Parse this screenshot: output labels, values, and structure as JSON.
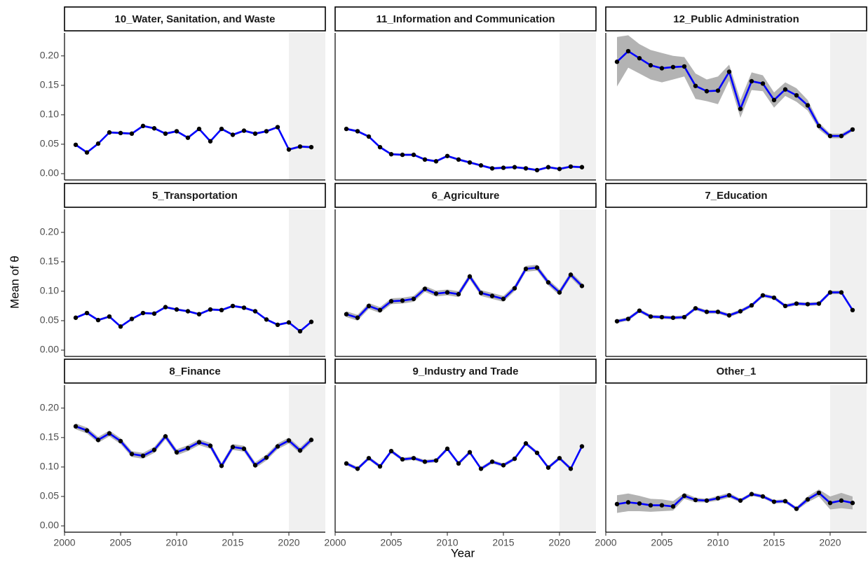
{
  "chart_data": {
    "type": "line",
    "xlabel": "Year",
    "ylabel": "Mean of θ",
    "xlim": [
      2000,
      2023.25
    ],
    "xticks": [
      2000,
      2005,
      2010,
      2015,
      2020
    ],
    "ylim": [
      -0.0107,
      0.239
    ],
    "yticks": [
      {
        "value": 0,
        "label": "0.00"
      },
      0.05,
      {
        "value": 0.1,
        "label": "0.10"
      },
      0.15,
      {
        "value": 0.2,
        "label": "0.20"
      }
    ],
    "shade_from": 2020,
    "shade_color": "#f0f0f0",
    "color": "#0000ff",
    "band_color": "#b3b3b3",
    "point_color": "#000000",
    "x": [
      2001,
      2002,
      2003,
      2004,
      2005,
      2006,
      2007,
      2008,
      2009,
      2010,
      2011,
      2012,
      2013,
      2014,
      2015,
      2016,
      2017,
      2018,
      2019,
      2020,
      2021,
      2022
    ],
    "facets": [
      {
        "title": "10_Water, Sanitation, and Waste",
        "values": [
          0.049,
          0.036,
          0.051,
          0.07,
          0.069,
          0.068,
          0.081,
          0.077,
          0.068,
          0.072,
          0.061,
          0.076,
          0.055,
          0.076,
          0.066,
          0.073,
          0.068,
          0.072,
          0.079,
          0.041,
          0.046,
          0.045
        ],
        "lower": [
          0.047,
          0.034,
          0.049,
          0.068,
          0.067,
          0.066,
          0.079,
          0.075,
          0.066,
          0.07,
          0.059,
          0.074,
          0.053,
          0.074,
          0.064,
          0.071,
          0.066,
          0.07,
          0.077,
          0.039,
          0.044,
          0.043
        ],
        "upper": [
          0.051,
          0.038,
          0.053,
          0.072,
          0.071,
          0.07,
          0.083,
          0.079,
          0.07,
          0.074,
          0.063,
          0.078,
          0.057,
          0.078,
          0.068,
          0.075,
          0.07,
          0.074,
          0.081,
          0.043,
          0.048,
          0.047
        ]
      },
      {
        "title": "11_Information and Communication",
        "values": [
          0.076,
          0.072,
          0.063,
          0.045,
          0.033,
          0.032,
          0.032,
          0.024,
          0.021,
          0.03,
          0.024,
          0.019,
          0.014,
          0.009,
          0.01,
          0.011,
          0.009,
          0.006,
          0.011,
          0.008,
          0.012,
          0.011
        ],
        "lower": [
          0.074,
          0.07,
          0.061,
          0.043,
          0.031,
          0.03,
          0.03,
          0.022,
          0.019,
          0.028,
          0.022,
          0.017,
          0.012,
          0.007,
          0.008,
          0.009,
          0.007,
          0.004,
          0.009,
          0.006,
          0.01,
          0.009
        ],
        "upper": [
          0.078,
          0.074,
          0.065,
          0.047,
          0.035,
          0.034,
          0.034,
          0.026,
          0.023,
          0.032,
          0.026,
          0.021,
          0.016,
          0.011,
          0.012,
          0.013,
          0.011,
          0.008,
          0.013,
          0.01,
          0.014,
          0.013
        ]
      },
      {
        "title": "12_Public Administration",
        "values": [
          0.19,
          0.208,
          0.196,
          0.184,
          0.179,
          0.181,
          0.182,
          0.149,
          0.14,
          0.141,
          0.173,
          0.11,
          0.157,
          0.153,
          0.125,
          0.143,
          0.133,
          0.116,
          0.081,
          0.064,
          0.064,
          0.075
        ],
        "lower": [
          0.148,
          0.18,
          0.17,
          0.16,
          0.155,
          0.16,
          0.165,
          0.127,
          0.123,
          0.118,
          0.158,
          0.095,
          0.142,
          0.14,
          0.112,
          0.132,
          0.122,
          0.107,
          0.075,
          0.06,
          0.06,
          0.072
        ],
        "upper": [
          0.232,
          0.235,
          0.22,
          0.21,
          0.205,
          0.2,
          0.198,
          0.17,
          0.16,
          0.165,
          0.185,
          0.125,
          0.172,
          0.167,
          0.138,
          0.155,
          0.145,
          0.125,
          0.087,
          0.068,
          0.068,
          0.078
        ]
      },
      {
        "title": "5_Transportation",
        "values": [
          0.055,
          0.063,
          0.051,
          0.057,
          0.04,
          0.053,
          0.063,
          0.062,
          0.073,
          0.069,
          0.066,
          0.061,
          0.069,
          0.068,
          0.075,
          0.072,
          0.066,
          0.052,
          0.043,
          0.047,
          0.032,
          0.048
        ],
        "lower": [
          0.053,
          0.061,
          0.049,
          0.055,
          0.038,
          0.051,
          0.061,
          0.06,
          0.071,
          0.067,
          0.064,
          0.059,
          0.067,
          0.066,
          0.073,
          0.07,
          0.064,
          0.05,
          0.041,
          0.045,
          0.03,
          0.046
        ],
        "upper": [
          0.057,
          0.065,
          0.053,
          0.059,
          0.042,
          0.055,
          0.065,
          0.064,
          0.075,
          0.071,
          0.068,
          0.063,
          0.071,
          0.07,
          0.077,
          0.074,
          0.068,
          0.054,
          0.045,
          0.049,
          0.034,
          0.05
        ]
      },
      {
        "title": "6_Agriculture",
        "values": [
          0.061,
          0.055,
          0.075,
          0.068,
          0.083,
          0.084,
          0.087,
          0.104,
          0.096,
          0.098,
          0.095,
          0.125,
          0.097,
          0.092,
          0.087,
          0.105,
          0.138,
          0.14,
          0.115,
          0.098,
          0.128,
          0.109
        ],
        "lower": [
          0.056,
          0.05,
          0.07,
          0.063,
          0.078,
          0.079,
          0.082,
          0.099,
          0.091,
          0.093,
          0.09,
          0.12,
          0.092,
          0.087,
          0.082,
          0.1,
          0.133,
          0.135,
          0.11,
          0.093,
          0.123,
          0.104
        ],
        "upper": [
          0.066,
          0.06,
          0.08,
          0.073,
          0.088,
          0.089,
          0.092,
          0.109,
          0.101,
          0.103,
          0.1,
          0.13,
          0.102,
          0.097,
          0.092,
          0.11,
          0.143,
          0.145,
          0.12,
          0.103,
          0.133,
          0.114
        ]
      },
      {
        "title": "7_Education",
        "values": [
          0.049,
          0.053,
          0.067,
          0.057,
          0.056,
          0.055,
          0.056,
          0.071,
          0.065,
          0.065,
          0.059,
          0.066,
          0.076,
          0.093,
          0.089,
          0.075,
          0.079,
          0.078,
          0.079,
          0.098,
          0.098,
          0.068
        ],
        "lower": [
          0.046,
          0.05,
          0.064,
          0.054,
          0.053,
          0.052,
          0.053,
          0.068,
          0.062,
          0.062,
          0.056,
          0.063,
          0.073,
          0.09,
          0.086,
          0.072,
          0.076,
          0.075,
          0.076,
          0.095,
          0.095,
          0.065
        ],
        "upper": [
          0.052,
          0.056,
          0.07,
          0.06,
          0.059,
          0.058,
          0.059,
          0.074,
          0.068,
          0.068,
          0.062,
          0.069,
          0.079,
          0.096,
          0.092,
          0.078,
          0.082,
          0.081,
          0.082,
          0.101,
          0.101,
          0.071
        ]
      },
      {
        "title": "8_Finance",
        "values": [
          0.169,
          0.162,
          0.146,
          0.157,
          0.144,
          0.122,
          0.119,
          0.129,
          0.152,
          0.125,
          0.132,
          0.142,
          0.136,
          0.102,
          0.134,
          0.131,
          0.103,
          0.116,
          0.135,
          0.145,
          0.128,
          0.146
        ],
        "lower": [
          0.164,
          0.157,
          0.141,
          0.152,
          0.139,
          0.117,
          0.114,
          0.124,
          0.147,
          0.12,
          0.127,
          0.137,
          0.131,
          0.097,
          0.129,
          0.126,
          0.098,
          0.111,
          0.13,
          0.14,
          0.123,
          0.141
        ],
        "upper": [
          0.174,
          0.167,
          0.151,
          0.162,
          0.149,
          0.127,
          0.124,
          0.134,
          0.157,
          0.13,
          0.137,
          0.147,
          0.141,
          0.107,
          0.139,
          0.136,
          0.108,
          0.121,
          0.14,
          0.15,
          0.133,
          0.151
        ]
      },
      {
        "title": "9_Industry and Trade",
        "values": [
          0.106,
          0.097,
          0.115,
          0.101,
          0.127,
          0.113,
          0.115,
          0.109,
          0.111,
          0.131,
          0.106,
          0.125,
          0.097,
          0.109,
          0.103,
          0.114,
          0.14,
          0.124,
          0.099,
          0.115,
          0.097,
          0.135
        ],
        "lower": [
          0.103,
          0.094,
          0.112,
          0.098,
          0.124,
          0.11,
          0.112,
          0.106,
          0.108,
          0.128,
          0.103,
          0.122,
          0.094,
          0.106,
          0.1,
          0.111,
          0.137,
          0.121,
          0.096,
          0.112,
          0.094,
          0.132
        ],
        "upper": [
          0.109,
          0.1,
          0.118,
          0.104,
          0.13,
          0.116,
          0.118,
          0.112,
          0.114,
          0.134,
          0.109,
          0.128,
          0.1,
          0.112,
          0.106,
          0.117,
          0.143,
          0.127,
          0.102,
          0.118,
          0.1,
          0.138
        ]
      },
      {
        "title": "Other_1",
        "values": [
          0.037,
          0.04,
          0.038,
          0.035,
          0.035,
          0.033,
          0.051,
          0.044,
          0.043,
          0.047,
          0.052,
          0.043,
          0.054,
          0.05,
          0.041,
          0.042,
          0.029,
          0.045,
          0.056,
          0.039,
          0.043,
          0.039
        ],
        "lower": [
          0.022,
          0.025,
          0.025,
          0.024,
          0.025,
          0.026,
          0.046,
          0.04,
          0.04,
          0.043,
          0.048,
          0.04,
          0.051,
          0.047,
          0.038,
          0.039,
          0.026,
          0.04,
          0.05,
          0.028,
          0.03,
          0.028
        ],
        "upper": [
          0.052,
          0.055,
          0.051,
          0.046,
          0.045,
          0.042,
          0.056,
          0.048,
          0.046,
          0.051,
          0.056,
          0.046,
          0.057,
          0.053,
          0.044,
          0.045,
          0.032,
          0.05,
          0.062,
          0.05,
          0.056,
          0.05
        ]
      }
    ]
  }
}
